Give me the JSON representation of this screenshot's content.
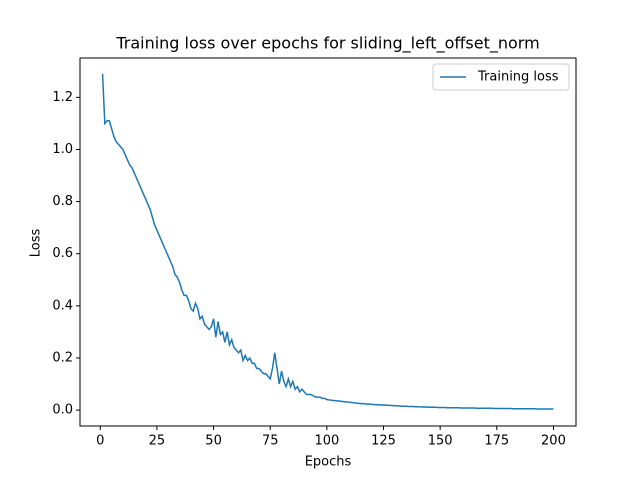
{
  "chart_data": {
    "type": "line",
    "title": "Training loss over epochs for sliding_left_offset_norm",
    "x_label": "Epochs",
    "y_label": "Loss",
    "x": [
      1,
      2,
      3,
      4,
      5,
      6,
      7,
      8,
      9,
      10,
      11,
      12,
      13,
      14,
      15,
      16,
      17,
      18,
      19,
      20,
      21,
      22,
      23,
      24,
      25,
      26,
      27,
      28,
      29,
      30,
      31,
      32,
      33,
      34,
      35,
      36,
      37,
      38,
      39,
      40,
      41,
      42,
      43,
      44,
      45,
      46,
      47,
      48,
      49,
      50,
      51,
      52,
      53,
      54,
      55,
      56,
      57,
      58,
      59,
      60,
      61,
      62,
      63,
      64,
      65,
      66,
      67,
      68,
      69,
      70,
      71,
      72,
      73,
      74,
      75,
      76,
      77,
      78,
      79,
      80,
      81,
      82,
      83,
      84,
      85,
      86,
      87,
      88,
      89,
      90,
      91,
      92,
      93,
      94,
      95,
      96,
      97,
      98,
      99,
      100,
      101,
      102,
      103,
      104,
      105,
      106,
      107,
      108,
      109,
      110,
      111,
      112,
      113,
      114,
      115,
      116,
      117,
      118,
      119,
      120,
      121,
      122,
      123,
      124,
      125,
      126,
      127,
      128,
      129,
      130,
      131,
      132,
      133,
      134,
      135,
      136,
      137,
      138,
      139,
      140,
      141,
      142,
      143,
      144,
      145,
      146,
      147,
      148,
      149,
      150,
      151,
      152,
      153,
      154,
      155,
      156,
      157,
      158,
      159,
      160,
      161,
      162,
      163,
      164,
      165,
      166,
      167,
      168,
      169,
      170,
      171,
      172,
      173,
      174,
      175,
      176,
      177,
      178,
      179,
      180,
      181,
      182,
      183,
      184,
      185,
      186,
      187,
      188,
      189,
      190,
      191,
      192,
      193,
      194,
      195,
      196,
      197,
      198,
      199,
      200
    ],
    "series": [
      {
        "name": "Training loss",
        "color": "#1f77b4",
        "values": [
          1.29,
          1.1,
          1.11,
          1.11,
          1.08,
          1.05,
          1.03,
          1.02,
          1.01,
          1.0,
          0.98,
          0.96,
          0.94,
          0.93,
          0.91,
          0.89,
          0.87,
          0.85,
          0.83,
          0.81,
          0.79,
          0.77,
          0.74,
          0.71,
          0.69,
          0.67,
          0.65,
          0.63,
          0.61,
          0.59,
          0.57,
          0.55,
          0.52,
          0.51,
          0.49,
          0.46,
          0.44,
          0.44,
          0.42,
          0.39,
          0.38,
          0.41,
          0.39,
          0.35,
          0.36,
          0.33,
          0.32,
          0.31,
          0.32,
          0.35,
          0.28,
          0.34,
          0.29,
          0.3,
          0.26,
          0.3,
          0.25,
          0.27,
          0.24,
          0.23,
          0.22,
          0.23,
          0.19,
          0.21,
          0.19,
          0.2,
          0.18,
          0.18,
          0.16,
          0.16,
          0.15,
          0.14,
          0.14,
          0.13,
          0.12,
          0.16,
          0.22,
          0.16,
          0.1,
          0.15,
          0.11,
          0.09,
          0.12,
          0.09,
          0.11,
          0.08,
          0.09,
          0.07,
          0.08,
          0.07,
          0.06,
          0.06,
          0.06,
          0.055,
          0.05,
          0.05,
          0.05,
          0.045,
          0.045,
          0.04,
          0.039,
          0.038,
          0.037,
          0.036,
          0.035,
          0.034,
          0.033,
          0.032,
          0.031,
          0.03,
          0.029,
          0.028,
          0.027,
          0.026,
          0.025,
          0.025,
          0.024,
          0.023,
          0.023,
          0.022,
          0.021,
          0.021,
          0.02,
          0.02,
          0.019,
          0.019,
          0.018,
          0.018,
          0.017,
          0.017,
          0.016,
          0.016,
          0.015,
          0.015,
          0.015,
          0.014,
          0.014,
          0.014,
          0.013,
          0.013,
          0.013,
          0.012,
          0.012,
          0.012,
          0.011,
          0.011,
          0.011,
          0.011,
          0.01,
          0.01,
          0.01,
          0.01,
          0.009,
          0.009,
          0.009,
          0.009,
          0.009,
          0.009,
          0.008,
          0.008,
          0.008,
          0.008,
          0.008,
          0.008,
          0.008,
          0.007,
          0.007,
          0.007,
          0.007,
          0.007,
          0.007,
          0.007,
          0.007,
          0.006,
          0.006,
          0.006,
          0.006,
          0.006,
          0.006,
          0.006,
          0.006,
          0.005,
          0.005,
          0.005,
          0.005,
          0.005,
          0.005,
          0.005,
          0.005,
          0.005,
          0.005,
          0.005,
          0.004,
          0.004,
          0.004,
          0.004,
          0.004,
          0.004,
          0.004,
          0.004
        ]
      }
    ],
    "xlim": [
      -8.95,
      209.95
    ],
    "xticks": [
      0,
      25,
      50,
      75,
      100,
      125,
      150,
      175,
      200
    ],
    "ylim": [
      -0.061,
      1.351
    ],
    "yticks": [
      {
        "value": 0,
        "label": "0.0"
      },
      0.2,
      0.4,
      0.6,
      0.8,
      {
        "value": 1,
        "label": "1.0"
      },
      1.2
    ],
    "legend": "upper right",
    "grid": false
  }
}
